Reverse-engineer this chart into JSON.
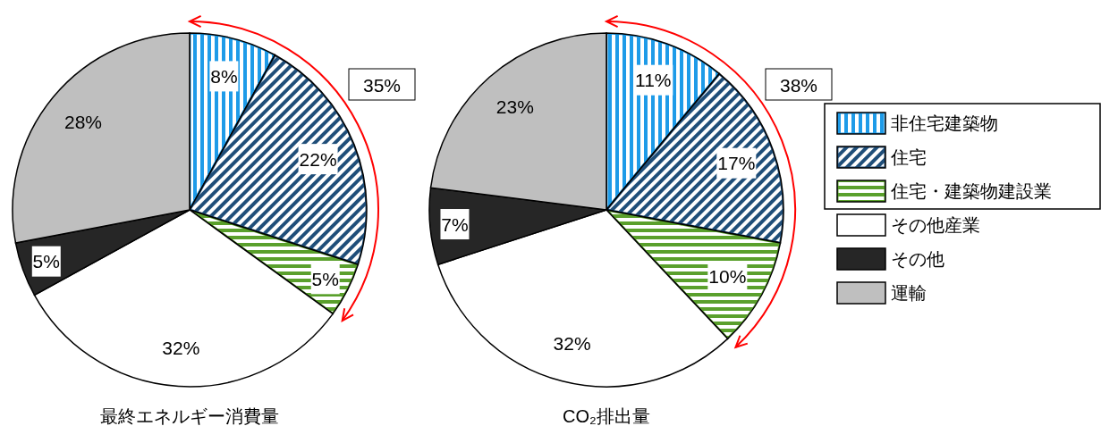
{
  "chart_data": [
    {
      "type": "pie",
      "title": "最終エネルギー消費量",
      "categories": [
        null,
        null,
        null,
        null,
        null,
        null
      ],
      "values": [
        8,
        22,
        5,
        32,
        5,
        28
      ],
      "colors": [
        "#1e9be8",
        "#1f4e79",
        "#5aa02c",
        "#ffffff",
        "#262626",
        "#bfbfbf"
      ],
      "value_labels": [
        "8%",
        "22%",
        "5%",
        "32%",
        "5%",
        "28%"
      ],
      "annotations": [
        "35%"
      ]
    },
    {
      "type": "pie",
      "title": "CO₂排出量",
      "categories": [
        "非住宅建築物",
        "住宅",
        "住宅・建築物建設業",
        "その他産業",
        "その他",
        "運輸"
      ],
      "values": [
        11,
        17,
        10,
        32,
        7,
        23
      ],
      "colors": [
        "#1e9be8",
        "#1f4e79",
        "#5aa02c",
        "#ffffff",
        "#262626",
        "#bfbfbf"
      ],
      "value_labels": [
        "11%",
        "17%",
        "10%",
        "32%",
        "7%",
        "23%"
      ],
      "annotations": [
        "38%"
      ],
      "legend": "right"
    }
  ]
}
